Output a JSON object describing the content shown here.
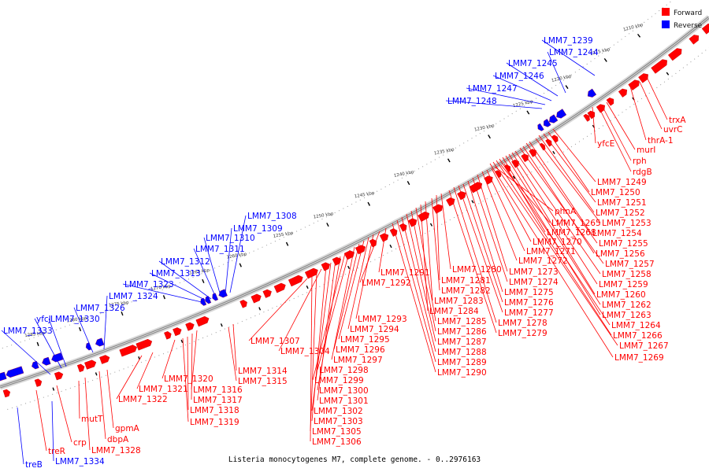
{
  "caption": "Listeria monocytogenes M7, complete genome. - 0..2976163",
  "legend": [
    {
      "label": "Forward",
      "color": "#ff0000"
    },
    {
      "label": "Reverse",
      "color": "#0000ff"
    }
  ],
  "colors": {
    "forward": "#ff0000",
    "reverse": "#0000ff",
    "backbone": "#888888",
    "tick": "#000000"
  },
  "ticks": [
    {
      "label": "1210 kbp"
    },
    {
      "label": "1215 kbp"
    },
    {
      "label": "1220 kbp"
    },
    {
      "label": "1225 kbp"
    },
    {
      "label": "1230 kbp"
    },
    {
      "label": "1235 kbp"
    },
    {
      "label": "1240 kbp"
    },
    {
      "label": "1245 kbp"
    },
    {
      "label": "1250 kbp"
    },
    {
      "label": "1255 kbp"
    },
    {
      "label": "1260 kbp"
    },
    {
      "label": "1265 kbp"
    },
    {
      "label": "1270 kbp"
    },
    {
      "label": "1275 kbp"
    },
    {
      "label": "1280 kbp"
    },
    {
      "label": "1285 kbp"
    }
  ],
  "reverse_labels": [
    {
      "text": "LMM7_1239"
    },
    {
      "text": "LMM7_1244"
    },
    {
      "text": "LMM7_1245"
    },
    {
      "text": "LMM7_1246"
    },
    {
      "text": "LMM7_1247"
    },
    {
      "text": "LMM7_1248"
    },
    {
      "text": "LMM7_1308"
    },
    {
      "text": "LMM7_1309"
    },
    {
      "text": "LMM7_1310"
    },
    {
      "text": "LMM7_1311"
    },
    {
      "text": "LMM7_1312"
    },
    {
      "text": "LMM7_1313"
    },
    {
      "text": "LMM7_1323"
    },
    {
      "text": "LMM7_1324"
    },
    {
      "text": "LMM7_1326"
    },
    {
      "text": "yfcJ"
    },
    {
      "text": "LMM7_1330"
    },
    {
      "text": "LMM7_1333"
    },
    {
      "text": "treB"
    },
    {
      "text": "LMM7_1334"
    }
  ],
  "forward_labels": [
    {
      "text": "trxA"
    },
    {
      "text": "uvrC"
    },
    {
      "text": "thrA-1"
    },
    {
      "text": "yfcE"
    },
    {
      "text": "murI"
    },
    {
      "text": "rph"
    },
    {
      "text": "rdgB"
    },
    {
      "text": "LMM7_1249"
    },
    {
      "text": "LMM7_1250"
    },
    {
      "text": "LMM7_1251"
    },
    {
      "text": "LMM7_1252"
    },
    {
      "text": "LMM7_1253"
    },
    {
      "text": "LMM7_1254"
    },
    {
      "text": "LMM7_1255"
    },
    {
      "text": "LMM7_1256"
    },
    {
      "text": "LMM7_1257"
    },
    {
      "text": "LMM7_1258"
    },
    {
      "text": "LMM7_1259"
    },
    {
      "text": "LMM7_1260"
    },
    {
      "text": "LMM7_1262"
    },
    {
      "text": "LMM7_1263"
    },
    {
      "text": "LMM7_1264"
    },
    {
      "text": "LMM7_1266"
    },
    {
      "text": "LMM7_1267"
    },
    {
      "text": "LMM7_1269"
    },
    {
      "text": "phnA"
    },
    {
      "text": "LMM7_1265"
    },
    {
      "text": "LMM7_1268"
    },
    {
      "text": "LMM7_1270"
    },
    {
      "text": "LMM7_1271"
    },
    {
      "text": "LMM7_1272"
    },
    {
      "text": "LMM7_1273"
    },
    {
      "text": "LMM7_1274"
    },
    {
      "text": "LMM7_1275"
    },
    {
      "text": "LMM7_1276"
    },
    {
      "text": "LMM7_1277"
    },
    {
      "text": "LMM7_1278"
    },
    {
      "text": "LMM7_1279"
    },
    {
      "text": "LMM7_1280"
    },
    {
      "text": "LMM7_1281"
    },
    {
      "text": "LMM7_1282"
    },
    {
      "text": "LMM7_1283"
    },
    {
      "text": "LMM7_1284"
    },
    {
      "text": "LMM7_1285"
    },
    {
      "text": "LMM7_1286"
    },
    {
      "text": "LMM7_1287"
    },
    {
      "text": "LMM7_1288"
    },
    {
      "text": "LMM7_1289"
    },
    {
      "text": "LMM7_1290"
    },
    {
      "text": "LMM7_1291"
    },
    {
      "text": "LMM7_1292"
    },
    {
      "text": "LMM7_1293"
    },
    {
      "text": "LMM7_1294"
    },
    {
      "text": "LMM7_1295"
    },
    {
      "text": "LMM7_1296"
    },
    {
      "text": "LMM7_1297"
    },
    {
      "text": "LMM7_1298"
    },
    {
      "text": "LMM7_1299"
    },
    {
      "text": "LMM7_1300"
    },
    {
      "text": "LMM7_1301"
    },
    {
      "text": "LMM7_1302"
    },
    {
      "text": "LMM7_1303"
    },
    {
      "text": "LMM7_1304"
    },
    {
      "text": "LMM7_1305"
    },
    {
      "text": "LMM7_1306"
    },
    {
      "text": "LMM7_1307"
    },
    {
      "text": "LMM7_1314"
    },
    {
      "text": "LMM7_1315"
    },
    {
      "text": "LMM7_1316"
    },
    {
      "text": "LMM7_1317"
    },
    {
      "text": "LMM7_1318"
    },
    {
      "text": "LMM7_1319"
    },
    {
      "text": "LMM7_1320"
    },
    {
      "text": "LMM7_1321"
    },
    {
      "text": "LMM7_1322"
    },
    {
      "text": "gpmA"
    },
    {
      "text": "dbpA"
    },
    {
      "text": "LMM7_1328"
    },
    {
      "text": "mutT"
    },
    {
      "text": "crp"
    },
    {
      "text": "treR"
    }
  ]
}
